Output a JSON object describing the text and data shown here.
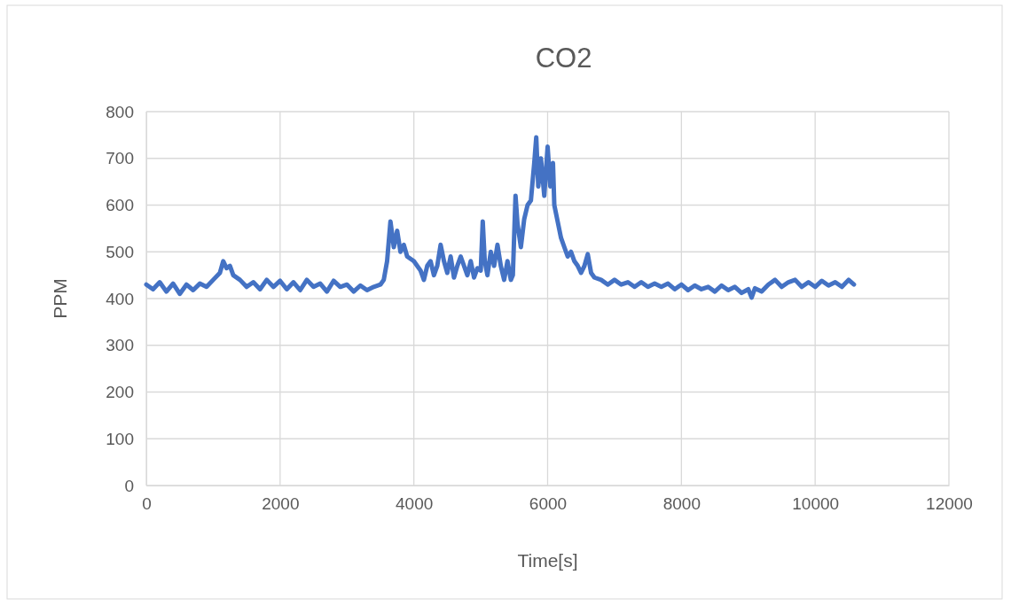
{
  "chart_data": {
    "type": "line",
    "title": "CO2",
    "xlabel": "Time[s]",
    "ylabel": "PPM",
    "xlim": [
      0,
      12000
    ],
    "xticks": [
      0,
      2000,
      4000,
      6000,
      8000,
      10000,
      12000
    ],
    "ylim": [
      0,
      800
    ],
    "yticks": [
      0,
      100,
      200,
      300,
      400,
      500,
      600,
      700,
      800
    ],
    "grid": true,
    "marker": "none",
    "line_style": "solid",
    "series": [
      {
        "color": "#4472c4",
        "x": [
          0,
          100,
          200,
          300,
          400,
          500,
          600,
          700,
          800,
          900,
          1000,
          1100,
          1150,
          1200,
          1250,
          1300,
          1400,
          1500,
          1600,
          1700,
          1800,
          1900,
          2000,
          2100,
          2200,
          2300,
          2400,
          2500,
          2600,
          2700,
          2800,
          2900,
          3000,
          3100,
          3200,
          3300,
          3400,
          3500,
          3550,
          3600,
          3650,
          3700,
          3750,
          3800,
          3850,
          3900,
          4000,
          4100,
          4150,
          4200,
          4250,
          4300,
          4350,
          4400,
          4450,
          4500,
          4550,
          4600,
          4650,
          4700,
          4800,
          4850,
          4900,
          4950,
          5000,
          5030,
          5060,
          5100,
          5150,
          5200,
          5250,
          5300,
          5350,
          5400,
          5450,
          5480,
          5520,
          5550,
          5600,
          5650,
          5700,
          5750,
          5800,
          5830,
          5860,
          5900,
          5950,
          6000,
          6040,
          6080,
          6100,
          6150,
          6200,
          6250,
          6300,
          6350,
          6400,
          6450,
          6500,
          6550,
          6600,
          6650,
          6700,
          6800,
          6900,
          7000,
          7100,
          7200,
          7300,
          7400,
          7500,
          7600,
          7700,
          7800,
          7900,
          8000,
          8100,
          8200,
          8300,
          8400,
          8500,
          8600,
          8700,
          8800,
          8900,
          9000,
          9050,
          9100,
          9200,
          9300,
          9400,
          9500,
          9600,
          9700,
          9800,
          9900,
          10000,
          10100,
          10200,
          10300,
          10400,
          10500,
          10580
        ],
        "values": [
          430,
          420,
          435,
          415,
          432,
          410,
          430,
          418,
          432,
          425,
          440,
          455,
          480,
          465,
          470,
          450,
          440,
          425,
          435,
          420,
          440,
          425,
          438,
          420,
          435,
          418,
          440,
          425,
          432,
          415,
          438,
          425,
          430,
          415,
          428,
          418,
          425,
          430,
          440,
          480,
          565,
          510,
          545,
          500,
          515,
          490,
          480,
          460,
          440,
          470,
          480,
          450,
          470,
          515,
          480,
          455,
          490,
          445,
          470,
          490,
          450,
          480,
          445,
          465,
          460,
          565,
          480,
          450,
          500,
          470,
          515,
          470,
          440,
          480,
          440,
          450,
          620,
          560,
          510,
          570,
          600,
          610,
          690,
          745,
          640,
          700,
          620,
          725,
          640,
          690,
          600,
          565,
          530,
          510,
          490,
          500,
          480,
          470,
          455,
          470,
          495,
          455,
          445,
          440,
          430,
          440,
          430,
          435,
          425,
          435,
          425,
          432,
          425,
          432,
          420,
          430,
          418,
          428,
          420,
          425,
          415,
          428,
          418,
          425,
          412,
          420,
          402,
          422,
          415,
          430,
          440,
          425,
          435,
          440,
          425,
          435,
          425,
          438,
          428,
          435,
          425,
          440,
          430
        ]
      }
    ]
  }
}
